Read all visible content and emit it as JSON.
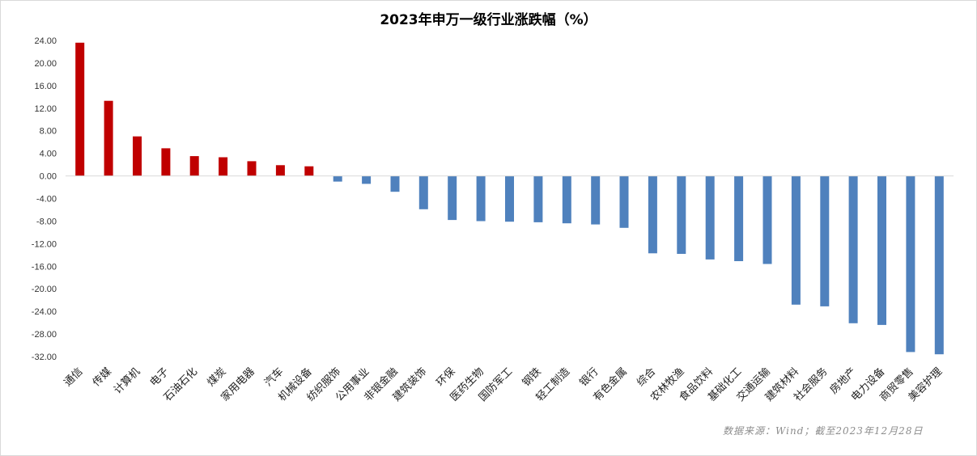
{
  "chart_data": {
    "type": "bar",
    "title": "2023年申万一级行业涨跌幅（%）",
    "source": "数据来源：Wind；截至2023年12月28日",
    "ylim": [
      -32,
      24
    ],
    "yticks": [
      "24.00",
      "20.00",
      "16.00",
      "12.00",
      "8.00",
      "4.00",
      "0.00",
      "-4.00",
      "-8.00",
      "-12.00",
      "-16.00",
      "-20.00",
      "-24.00",
      "-28.00",
      "-32.00"
    ],
    "grid": false,
    "colors": {
      "positive": "#c00000",
      "negative": "#4f81bd",
      "axis": "#d9d9d9"
    },
    "categories": [
      "通信",
      "传媒",
      "计算机",
      "电子",
      "石油石化",
      "煤炭",
      "家用电器",
      "汽车",
      "机械设备",
      "纺织服饰",
      "公用事业",
      "非银金融",
      "建筑装饰",
      "环保",
      "医药生物",
      "国防军工",
      "钢铁",
      "轻工制造",
      "银行",
      "有色金属",
      "综合",
      "农林牧渔",
      "食品饮料",
      "基础化工",
      "交通运输",
      "建筑材料",
      "社会服务",
      "房地产",
      "电力设备",
      "商贸零售",
      "美容护理"
    ],
    "values": [
      23.6,
      13.3,
      7.0,
      4.9,
      3.5,
      3.3,
      2.6,
      1.9,
      1.7,
      -1.0,
      -1.4,
      -2.8,
      -5.9,
      -7.8,
      -8.0,
      -8.1,
      -8.2,
      -8.4,
      -8.6,
      -9.2,
      -13.7,
      -13.8,
      -14.8,
      -15.1,
      -15.6,
      -22.8,
      -23.1,
      -26.1,
      -26.4,
      -31.2,
      -31.6
    ]
  }
}
